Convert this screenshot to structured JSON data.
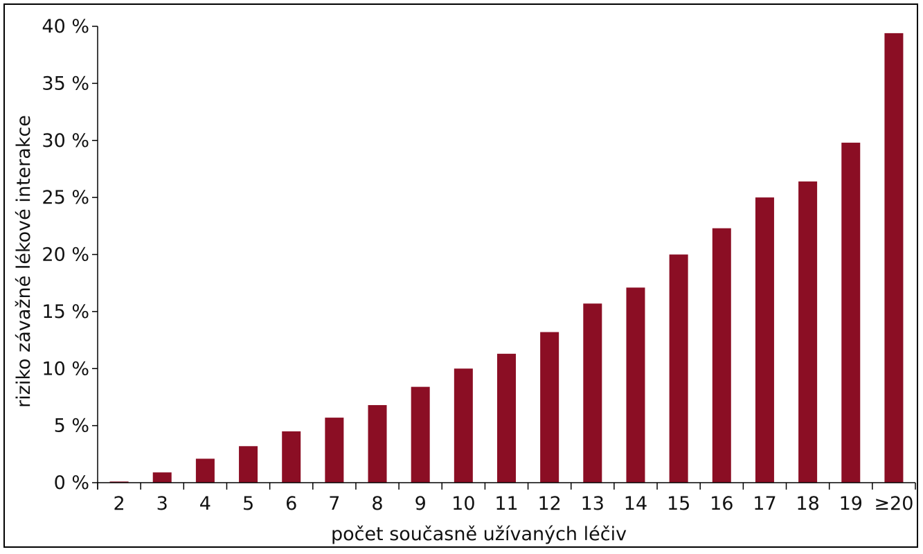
{
  "chart_data": {
    "type": "bar",
    "title": "",
    "xlabel": "počet současně užívaných léčiv",
    "ylabel": "riziko závažné lékové interakce",
    "categories": [
      "2",
      "3",
      "4",
      "5",
      "6",
      "7",
      "8",
      "9",
      "10",
      "11",
      "12",
      "13",
      "14",
      "15",
      "16",
      "17",
      "18",
      "19",
      "≥20"
    ],
    "values": [
      0.1,
      0.9,
      2.1,
      3.2,
      4.5,
      5.7,
      6.8,
      8.4,
      10.0,
      11.3,
      13.2,
      15.7,
      17.1,
      20.0,
      22.3,
      25.0,
      26.4,
      29.8,
      39.4
    ],
    "unit": "%",
    "ylim": [
      0,
      40
    ],
    "yticks": [
      0,
      5,
      10,
      15,
      20,
      25,
      30,
      35,
      40
    ],
    "ytick_labels": [
      "0 %",
      "5 %",
      "10 %",
      "15 %",
      "20 %",
      "25 %",
      "30 %",
      "35 %",
      "40 %"
    ],
    "bar_color": "#8b0e24",
    "grid": false,
    "legend": "none"
  }
}
